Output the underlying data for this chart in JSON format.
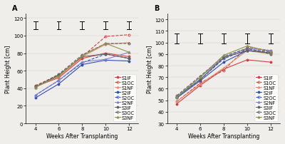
{
  "panel_A": {
    "title": "A",
    "ylabel": "Plant Height [cm]",
    "xlabel": "Weeks After Transplanting",
    "xlim": [
      3.2,
      12.8
    ],
    "ylim": [
      0,
      125
    ],
    "yticks": [
      0,
      20,
      40,
      60,
      80,
      100,
      120
    ],
    "xticks": [
      4,
      6,
      8,
      10,
      12
    ],
    "x": [
      4,
      6,
      8,
      10,
      12
    ],
    "series": [
      {
        "name": "S1IF",
        "values": [
          42,
          52,
          74,
          80,
          76
        ],
        "color": "#d04040",
        "linestyle": "-",
        "marker": "o",
        "fillstyle": "full"
      },
      {
        "name": "S1OC",
        "values": [
          43,
          55,
          76,
          99,
          101
        ],
        "color": "#d04040",
        "linestyle": "--",
        "marker": "o",
        "fillstyle": "none"
      },
      {
        "name": "S1NF",
        "values": [
          42,
          53,
          76,
          90,
          92
        ],
        "color": "#e09070",
        "linestyle": "-",
        "marker": "^",
        "fillstyle": "full"
      },
      {
        "name": "S2IF",
        "values": [
          29,
          45,
          67,
          72,
          71
        ],
        "color": "#3050b0",
        "linestyle": "-",
        "marker": "o",
        "fillstyle": "full"
      },
      {
        "name": "S2OC",
        "values": [
          32,
          49,
          69,
          79,
          74
        ],
        "color": "#3050b0",
        "linestyle": "--",
        "marker": "o",
        "fillstyle": "none"
      },
      {
        "name": "S2NF",
        "values": [
          32,
          49,
          70,
          73,
          81
        ],
        "color": "#8080d0",
        "linestyle": "-",
        "marker": "^",
        "fillstyle": "full"
      },
      {
        "name": "S3IF",
        "values": [
          41,
          55,
          76,
          79,
          74
        ],
        "color": "#606060",
        "linestyle": "-",
        "marker": "o",
        "fillstyle": "full"
      },
      {
        "name": "S3OC",
        "values": [
          42,
          56,
          78,
          91,
          91
        ],
        "color": "#606060",
        "linestyle": "--",
        "marker": "o",
        "fillstyle": "none"
      },
      {
        "name": "S3NF",
        "values": [
          41,
          54,
          77,
          91,
          81
        ],
        "color": "#909050",
        "linestyle": "-",
        "marker": "^",
        "fillstyle": "full"
      }
    ],
    "eb_x": [
      4,
      6,
      8,
      10,
      12
    ],
    "eb_lo": [
      107,
      107,
      107,
      107,
      107
    ],
    "eb_hi": [
      116,
      116,
      116,
      116,
      116
    ]
  },
  "panel_B": {
    "title": "B",
    "ylabel": "Plant Height [cm]",
    "xlabel": "Weeks After Transplanting",
    "xlim": [
      3.2,
      12.8
    ],
    "ylim": [
      30,
      125
    ],
    "yticks": [
      30,
      40,
      50,
      60,
      70,
      80,
      90,
      100,
      110,
      120
    ],
    "xticks": [
      4,
      6,
      8,
      10,
      12
    ],
    "x": [
      4,
      6,
      8,
      10,
      12
    ],
    "series": [
      {
        "name": "S1IF",
        "values": [
          47,
          63,
          77,
          85,
          83
        ],
        "color": "#d04040",
        "linestyle": "-",
        "marker": "o",
        "fillstyle": "full"
      },
      {
        "name": "S1OC",
        "values": [
          49,
          65,
          76,
          96,
          93
        ],
        "color": "#d04040",
        "linestyle": "--",
        "marker": "o",
        "fillstyle": "none"
      },
      {
        "name": "S1NF",
        "values": [
          49,
          64,
          78,
          93,
          90
        ],
        "color": "#e09070",
        "linestyle": "-",
        "marker": "^",
        "fillstyle": "full"
      },
      {
        "name": "S2IF",
        "values": [
          52,
          67,
          83,
          93,
          91
        ],
        "color": "#3050b0",
        "linestyle": "-",
        "marker": "o",
        "fillstyle": "full"
      },
      {
        "name": "S2OC",
        "values": [
          53,
          68,
          86,
          94,
          92
        ],
        "color": "#3050b0",
        "linestyle": "--",
        "marker": "o",
        "fillstyle": "none"
      },
      {
        "name": "S2NF",
        "values": [
          53,
          70,
          87,
          95,
          93
        ],
        "color": "#8080d0",
        "linestyle": "-",
        "marker": "^",
        "fillstyle": "full"
      },
      {
        "name": "S3IF",
        "values": [
          53,
          68,
          87,
          93,
          91
        ],
        "color": "#606060",
        "linestyle": "-",
        "marker": "o",
        "fillstyle": "full"
      },
      {
        "name": "S3OC",
        "values": [
          54,
          71,
          88,
          95,
          90
        ],
        "color": "#606060",
        "linestyle": "--",
        "marker": "o",
        "fillstyle": "none"
      },
      {
        "name": "S3NF",
        "values": [
          53,
          70,
          89,
          97,
          92
        ],
        "color": "#909050",
        "linestyle": "-",
        "marker": "^",
        "fillstyle": "full"
      }
    ],
    "eb_x": [
      4,
      6,
      8,
      10,
      12
    ],
    "eb_lo": [
      99,
      99,
      99,
      99,
      99
    ],
    "eb_hi": [
      108,
      108,
      108,
      108,
      108
    ]
  },
  "bg_color": "#f0eeeb",
  "legend_fontsize": 4.8,
  "axis_fontsize": 5.5,
  "tick_fontsize": 5.0,
  "title_fontsize": 7,
  "linewidth": 0.8,
  "markersize": 2.2,
  "eb_cap": 0.18
}
